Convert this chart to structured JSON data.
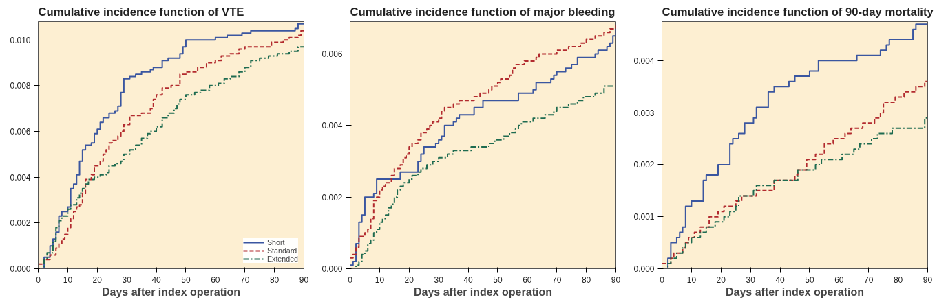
{
  "chart_data": [
    {
      "type": "step",
      "title": "Cumulative incidence function of VTE",
      "xlabel": "Days after index operation",
      "xlim": [
        0,
        90
      ],
      "xticks": [
        0,
        10,
        20,
        30,
        40,
        50,
        60,
        70,
        80,
        90
      ],
      "ylim": [
        0,
        0.0108
      ],
      "yticks": [
        {
          "value": 0,
          "label": "0.000"
        },
        {
          "value": 0.002,
          "label": "0.002"
        },
        {
          "value": 0.004,
          "label": "0.004"
        },
        {
          "value": 0.006,
          "label": "0.006"
        },
        {
          "value": 0.008,
          "label": "0.008"
        },
        {
          "value": 0.01,
          "label": "0.010"
        }
      ],
      "grid": false,
      "legend": "bottom right",
      "series": [
        {
          "name": "Short",
          "color": "#3a56a0",
          "line_style": "solid",
          "x": [
            0,
            2,
            4,
            5,
            6,
            7,
            8,
            10,
            11,
            12,
            13,
            14,
            15,
            16,
            18,
            19,
            20,
            21,
            22,
            24,
            26,
            27,
            28,
            29,
            31,
            33,
            35,
            38,
            39,
            42,
            44,
            48,
            49,
            50,
            60,
            64,
            69,
            72,
            87,
            88,
            90
          ],
          "values": [
            0,
            0.0005,
            0.001,
            0.0013,
            0.0016,
            0.0023,
            0.0025,
            0.0027,
            0.0035,
            0.0037,
            0.0041,
            0.0047,
            0.0052,
            0.0054,
            0.0055,
            0.0059,
            0.0061,
            0.0064,
            0.0066,
            0.0068,
            0.0069,
            0.0071,
            0.0077,
            0.0083,
            0.0084,
            0.0085,
            0.0086,
            0.0087,
            0.0088,
            0.0091,
            0.0092,
            0.0094,
            0.0097,
            0.01,
            0.0101,
            0.0102,
            0.0103,
            0.0104,
            0.0105,
            0.0107,
            0.0107
          ]
        },
        {
          "name": "Standard",
          "color": "#b22a2e",
          "line_style": "dashed",
          "x": [
            0,
            2,
            4,
            6,
            7,
            8,
            9,
            10,
            11,
            12,
            13,
            14,
            15,
            16,
            18,
            19,
            21,
            22,
            23,
            24,
            25,
            27,
            28,
            29,
            31,
            35,
            38,
            39,
            40,
            42,
            45,
            48,
            50,
            54,
            57,
            60,
            62,
            65,
            68,
            70,
            74,
            79,
            83,
            85,
            88,
            89,
            90
          ],
          "values": [
            0.0002,
            0.0004,
            0.0006,
            0.0009,
            0.0011,
            0.0013,
            0.0015,
            0.0018,
            0.0022,
            0.0025,
            0.0027,
            0.0028,
            0.0033,
            0.0039,
            0.0041,
            0.0045,
            0.0047,
            0.005,
            0.0052,
            0.0055,
            0.0056,
            0.0058,
            0.006,
            0.0063,
            0.0067,
            0.0068,
            0.007,
            0.0074,
            0.0076,
            0.0079,
            0.008,
            0.0085,
            0.0086,
            0.0088,
            0.009,
            0.0091,
            0.0093,
            0.0094,
            0.0096,
            0.0097,
            0.0097,
            0.0099,
            0.01,
            0.0101,
            0.0102,
            0.0104,
            0.0104
          ]
        },
        {
          "name": "Extended",
          "color": "#1e6b50",
          "line_style": "dashdot",
          "x": [
            0,
            2,
            3,
            5,
            6,
            7,
            8,
            10,
            11,
            13,
            14,
            15,
            16,
            17,
            19,
            21,
            23,
            24,
            26,
            28,
            29,
            31,
            33,
            35,
            37,
            38,
            40,
            42,
            44,
            46,
            47,
            48,
            50,
            53,
            55,
            58,
            61,
            63,
            65,
            68,
            70,
            72,
            75,
            78,
            81,
            85,
            88,
            90
          ],
          "values": [
            0,
            0.0004,
            0.0007,
            0.0012,
            0.0018,
            0.0021,
            0.0023,
            0.0026,
            0.0028,
            0.0031,
            0.0033,
            0.0035,
            0.0037,
            0.0039,
            0.004,
            0.0041,
            0.0042,
            0.0045,
            0.0046,
            0.0047,
            0.005,
            0.0052,
            0.0054,
            0.0057,
            0.0059,
            0.006,
            0.0062,
            0.0066,
            0.0068,
            0.007,
            0.0072,
            0.0074,
            0.0076,
            0.0077,
            0.0078,
            0.008,
            0.0081,
            0.0083,
            0.0084,
            0.0086,
            0.0088,
            0.0091,
            0.0092,
            0.0093,
            0.0094,
            0.0095,
            0.0097,
            0.0097
          ]
        }
      ]
    },
    {
      "type": "step",
      "title": "Cumulative incidence function of major bleeding",
      "xlabel": "Days after index operation",
      "xlim": [
        0,
        90
      ],
      "xticks": [
        0,
        10,
        20,
        30,
        40,
        50,
        60,
        70,
        80,
        90
      ],
      "ylim": [
        0,
        0.0069
      ],
      "yticks": [
        {
          "value": 0,
          "label": "0.000"
        },
        {
          "value": 0.002,
          "label": "0.002"
        },
        {
          "value": 0.004,
          "label": "0.004"
        },
        {
          "value": 0.006,
          "label": "0.006"
        }
      ],
      "grid": false,
      "series": [
        {
          "color": "#3a56a0",
          "line_style": "solid",
          "x": [
            0,
            1,
            2,
            3,
            4,
            5,
            8,
            9,
            17,
            23,
            24,
            25,
            29,
            30,
            31,
            32,
            35,
            36,
            37,
            42,
            45,
            57,
            62,
            63,
            68,
            69,
            70,
            73,
            75,
            77,
            83,
            84,
            87,
            88,
            89,
            90
          ],
          "values": [
            0.0001,
            0.0002,
            0.0007,
            0.0013,
            0.0015,
            0.002,
            0.0021,
            0.0025,
            0.0027,
            0.003,
            0.0032,
            0.0034,
            0.0035,
            0.0036,
            0.0037,
            0.004,
            0.0041,
            0.0042,
            0.0043,
            0.0045,
            0.0047,
            0.0049,
            0.005,
            0.0052,
            0.0053,
            0.0054,
            0.0055,
            0.0056,
            0.0057,
            0.0059,
            0.006,
            0.0061,
            0.0062,
            0.0063,
            0.0065,
            0.0067
          ]
        },
        {
          "color": "#b22a2e",
          "line_style": "dashed",
          "x": [
            0,
            1,
            2,
            3,
            5,
            6,
            7,
            8,
            9,
            10,
            11,
            12,
            14,
            15,
            17,
            18,
            19,
            20,
            21,
            23,
            24,
            26,
            27,
            28,
            30,
            31,
            32,
            35,
            37,
            42,
            44,
            47,
            48,
            50,
            51,
            54,
            55,
            56,
            59,
            63,
            64,
            70,
            74,
            78,
            80,
            83,
            86,
            88,
            90
          ],
          "values": [
            0.0003,
            0.0004,
            0.0006,
            0.0009,
            0.001,
            0.0011,
            0.0014,
            0.0019,
            0.002,
            0.0022,
            0.0023,
            0.0024,
            0.0026,
            0.0028,
            0.0029,
            0.0031,
            0.0032,
            0.0034,
            0.0035,
            0.0036,
            0.0038,
            0.0039,
            0.004,
            0.0041,
            0.0042,
            0.0044,
            0.0045,
            0.0046,
            0.0047,
            0.0048,
            0.0049,
            0.005,
            0.0051,
            0.0052,
            0.0053,
            0.0054,
            0.0056,
            0.0057,
            0.0058,
            0.0059,
            0.006,
            0.0061,
            0.0062,
            0.0063,
            0.0064,
            0.0065,
            0.0066,
            0.0067,
            0.0068
          ]
        },
        {
          "color": "#1e6b50",
          "line_style": "dashdot",
          "x": [
            0,
            2,
            3,
            4,
            5,
            6,
            7,
            8,
            9,
            10,
            11,
            12,
            13,
            14,
            15,
            16,
            17,
            18,
            20,
            21,
            23,
            24,
            26,
            28,
            30,
            33,
            35,
            41,
            47,
            49,
            52,
            54,
            56,
            57,
            58,
            62,
            66,
            69,
            70,
            74,
            77,
            79,
            83,
            86,
            90
          ],
          "values": [
            0,
            0.0001,
            0.0002,
            0.0004,
            0.0005,
            0.0007,
            0.0008,
            0.001,
            0.0011,
            0.0013,
            0.0014,
            0.0015,
            0.0017,
            0.0018,
            0.002,
            0.0022,
            0.0023,
            0.0024,
            0.0025,
            0.0026,
            0.0027,
            0.0028,
            0.0029,
            0.003,
            0.0031,
            0.0032,
            0.0033,
            0.0034,
            0.0035,
            0.0036,
            0.0037,
            0.0038,
            0.0039,
            0.004,
            0.0041,
            0.0042,
            0.0043,
            0.0044,
            0.0045,
            0.0046,
            0.0047,
            0.0048,
            0.0049,
            0.0051,
            0.0051
          ]
        }
      ]
    },
    {
      "type": "step",
      "title": "Cumulative incidence function of 90-day mortality",
      "xlabel": "Days after index operation",
      "xlim": [
        0,
        90
      ],
      "xticks": [
        0,
        10,
        20,
        30,
        40,
        50,
        60,
        70,
        80,
        90
      ],
      "ylim": [
        0,
        0.00475
      ],
      "yticks": [
        {
          "value": 0,
          "label": "0.000"
        },
        {
          "value": 0.001,
          "label": "0.001"
        },
        {
          "value": 0.002,
          "label": "0.002"
        },
        {
          "value": 0.003,
          "label": "0.003"
        },
        {
          "value": 0.004,
          "label": "0.004"
        }
      ],
      "grid": false,
      "series": [
        {
          "color": "#3a56a0",
          "line_style": "solid",
          "x": [
            0,
            2,
            3,
            5,
            6,
            7,
            8,
            10,
            14,
            15,
            19,
            23,
            24,
            26,
            28,
            31,
            32,
            36,
            38,
            43,
            45,
            50,
            53,
            66,
            74,
            76,
            77,
            85,
            86,
            90
          ],
          "values": [
            0,
            0.0002,
            0.0005,
            0.0006,
            0.0007,
            0.0008,
            0.0012,
            0.0013,
            0.0017,
            0.0018,
            0.002,
            0.0024,
            0.0025,
            0.0026,
            0.0028,
            0.0029,
            0.0031,
            0.0034,
            0.0035,
            0.0036,
            0.0037,
            0.0038,
            0.004,
            0.0041,
            0.0042,
            0.0043,
            0.0044,
            0.0046,
            0.0047,
            0.0047
          ]
        },
        {
          "color": "#b22a2e",
          "line_style": "dashed",
          "x": [
            0,
            3,
            4,
            7,
            8,
            9,
            11,
            13,
            16,
            19,
            21,
            25,
            27,
            32,
            38,
            45,
            46,
            49,
            52,
            55,
            58,
            62,
            64,
            68,
            72,
            74,
            75,
            79,
            82,
            86,
            89,
            90
          ],
          "values": [
            0.0001,
            0.0002,
            0.0003,
            0.0004,
            0.0005,
            0.0006,
            0.0007,
            0.0008,
            0.001,
            0.0011,
            0.0012,
            0.0013,
            0.0014,
            0.0015,
            0.0017,
            0.0018,
            0.0019,
            0.0021,
            0.0022,
            0.0024,
            0.0025,
            0.0026,
            0.0027,
            0.0028,
            0.0029,
            0.003,
            0.0032,
            0.0033,
            0.0034,
            0.0035,
            0.0036,
            0.0036
          ]
        },
        {
          "color": "#1e6b50",
          "line_style": "dashdot",
          "x": [
            0,
            2,
            3,
            5,
            7,
            8,
            10,
            13,
            15,
            18,
            21,
            23,
            25,
            26,
            31,
            32,
            38,
            46,
            52,
            54,
            61,
            65,
            67,
            71,
            73,
            78,
            86,
            89,
            90
          ],
          "values": [
            0,
            0.0001,
            0.0002,
            0.0003,
            0.0004,
            0.0005,
            0.0006,
            0.0007,
            0.0008,
            0.0009,
            0.001,
            0.0011,
            0.0012,
            0.0014,
            0.0015,
            0.0016,
            0.0017,
            0.0019,
            0.002,
            0.0021,
            0.0022,
            0.0023,
            0.0024,
            0.0025,
            0.0026,
            0.0027,
            0.0027,
            0.0029,
            0.0029
          ]
        }
      ]
    }
  ]
}
